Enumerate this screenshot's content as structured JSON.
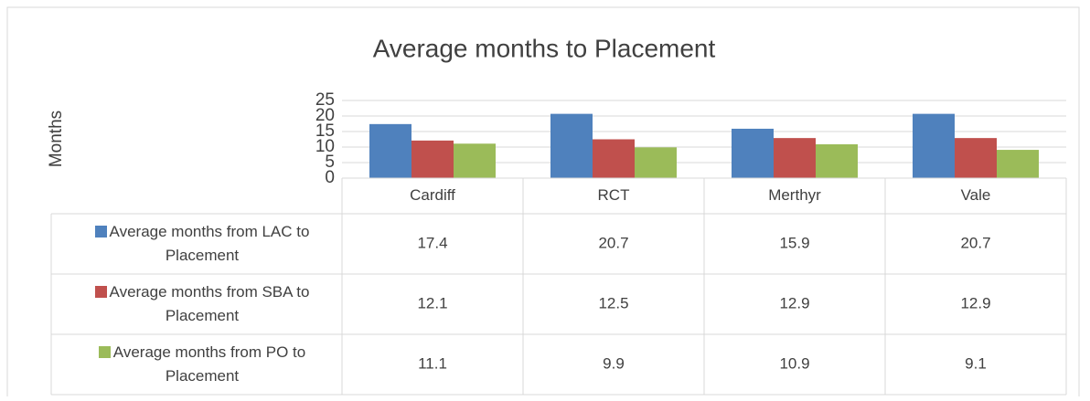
{
  "chart_data": {
    "type": "bar",
    "title": "Average months to Placement",
    "y_label": "Months",
    "categories": [
      "Cardiff",
      "RCT",
      "Merthyr",
      "Vale"
    ],
    "series": [
      {
        "name": "Average months from LAC to Placement",
        "color": "#4f81bd",
        "values": [
          17.4,
          20.7,
          15.9,
          20.7
        ]
      },
      {
        "name": "Average months from SBA to Placement",
        "color": "#c0504d",
        "values": [
          12.1,
          12.5,
          12.9,
          12.9
        ]
      },
      {
        "name": "Average months from PO to Placement",
        "color": "#9bbb59",
        "values": [
          11.1,
          9.9,
          10.9,
          9.1
        ]
      }
    ],
    "ylim": [
      0,
      25
    ],
    "yticks": [
      0,
      5,
      10,
      15,
      20,
      25
    ],
    "grid": true,
    "data_table": true
  }
}
